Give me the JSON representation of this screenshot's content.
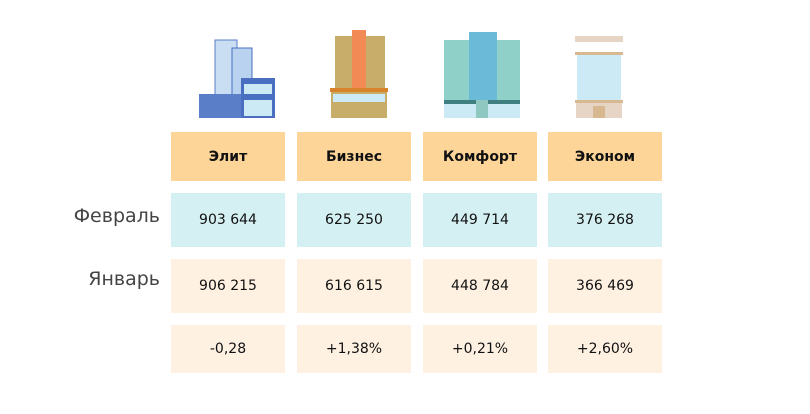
{
  "columns": [
    "Элит",
    "Бизнес",
    "Комфорт",
    "Эконом"
  ],
  "rows": [
    {
      "label": "Февраль",
      "values": [
        "903 644",
        "625 250",
        "449 714",
        "376 268"
      ]
    },
    {
      "label": "Январь",
      "values": [
        "906 215",
        "616 615",
        "448 784",
        "366 469"
      ]
    },
    {
      "label": "",
      "values": [
        "-0,28",
        "+1,38%",
        "+0,21%",
        "+2,60%"
      ]
    }
  ],
  "colors": {
    "header": "#fdd598",
    "february": "#d4f0f3",
    "january": "#fef1e2"
  }
}
